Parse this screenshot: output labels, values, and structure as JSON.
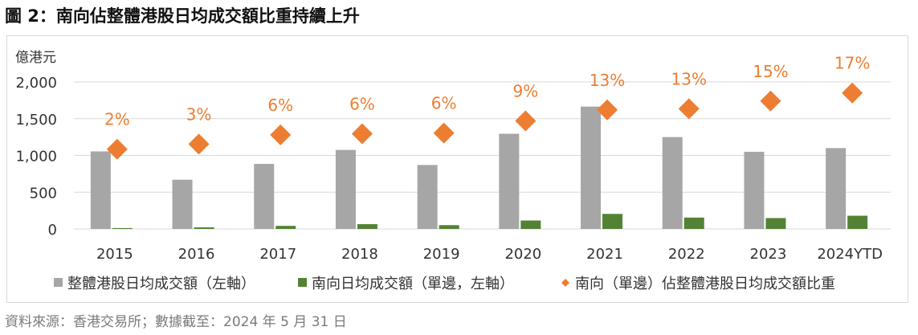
{
  "title": "圖 2：南向佔整體港股日均成交額比重持續上升",
  "source": "資料來源：香港交易所；數據截至：2024 年 5 月 31 日",
  "chart_data": {
    "type": "bar",
    "ylabel": "億港元",
    "ylim": [
      0,
      2000
    ],
    "yticks": [
      0,
      500,
      1000,
      1500,
      2000
    ],
    "ytick_labels": [
      "0",
      "500",
      "1,000",
      "1,500",
      "2,000"
    ],
    "categories": [
      "2015",
      "2016",
      "2017",
      "2018",
      "2019",
      "2020",
      "2021",
      "2022",
      "2023",
      "2024YTD"
    ],
    "grid": true,
    "legend_position": "bottom",
    "series": [
      {
        "name": "整體港股日均成交額（左軸）",
        "type": "bar",
        "color": "#a6a6a6",
        "values": [
          1055,
          670,
          885,
          1075,
          870,
          1295,
          1665,
          1250,
          1050,
          1100
        ]
      },
      {
        "name": "南向日均成交額（單邊，左軸）",
        "type": "bar",
        "color": "#548235",
        "values": [
          12,
          22,
          42,
          65,
          52,
          115,
          205,
          155,
          148,
          180
        ]
      },
      {
        "name": "南向（單邊）佔整體港股日均成交額比重",
        "type": "scatter",
        "color": "#ed7d31",
        "marker": "diamond",
        "values_pct": [
          2,
          3,
          6,
          6,
          6,
          9,
          13,
          13,
          15,
          17
        ],
        "labels": [
          "2%",
          "3%",
          "6%",
          "6%",
          "6%",
          "9%",
          "13%",
          "13%",
          "15%",
          "17%"
        ],
        "marker_left_axis": [
          1085,
          1155,
          1280,
          1295,
          1305,
          1470,
          1620,
          1635,
          1740,
          1850
        ]
      }
    ]
  }
}
